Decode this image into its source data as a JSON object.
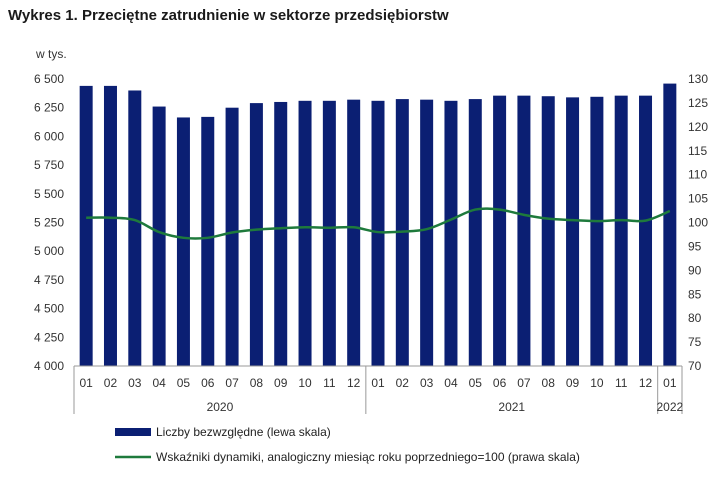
{
  "chart_data": {
    "type": "bar",
    "title": "Wykres 1. Przeciętne zatrudnienie w sektorze przedsiębiorstw",
    "left_axis_unit": "w tys.",
    "categories": [
      "01",
      "02",
      "03",
      "04",
      "05",
      "06",
      "07",
      "08",
      "09",
      "10",
      "11",
      "12",
      "01",
      "02",
      "03",
      "04",
      "05",
      "06",
      "07",
      "08",
      "09",
      "10",
      "11",
      "12",
      "01"
    ],
    "year_groups": [
      {
        "label": "2020",
        "start": 0,
        "end": 11
      },
      {
        "label": "2021",
        "start": 12,
        "end": 23
      },
      {
        "label": "2022",
        "start": 24,
        "end": 24
      }
    ],
    "ylim_left": [
      4000,
      6500
    ],
    "yticks_left": [
      4000,
      4250,
      4500,
      4750,
      5000,
      5250,
      5500,
      5750,
      6000,
      6250,
      6500
    ],
    "yticks_left_labels": [
      "4 000",
      "4 250",
      "4 500",
      "4 750",
      "5 000",
      "5 250",
      "5 500",
      "5 750",
      "6 000",
      "6 250",
      "6 500"
    ],
    "ylim_right": [
      70,
      130
    ],
    "yticks_right": [
      70,
      75,
      80,
      85,
      90,
      95,
      100,
      105,
      110,
      115,
      120,
      125,
      130
    ],
    "series": [
      {
        "name": "Liczby bezwzględne (lewa skala)",
        "type": "bar",
        "axis": "left",
        "color": "#0b1f73",
        "values": [
          6440,
          6440,
          6400,
          6260,
          6165,
          6170,
          6250,
          6290,
          6300,
          6310,
          6310,
          6320,
          6310,
          6325,
          6320,
          6310,
          6325,
          6355,
          6355,
          6350,
          6340,
          6345,
          6355,
          6355,
          6460
        ]
      },
      {
        "name": "Wskaźniki dynamiki, analogiczny miesiąc roku poprzedniego=100 (prawa skala)",
        "type": "line",
        "axis": "right",
        "color": "#1e7a3c",
        "values": [
          101.0,
          101.0,
          100.5,
          98.0,
          96.8,
          96.8,
          97.9,
          98.5,
          98.8,
          99.0,
          98.9,
          99.0,
          98.0,
          98.1,
          98.6,
          100.6,
          102.7,
          102.7,
          101.6,
          100.8,
          100.5,
          100.3,
          100.5,
          100.4,
          102.4
        ]
      }
    ],
    "legend_position": "bottom",
    "grid": false
  }
}
